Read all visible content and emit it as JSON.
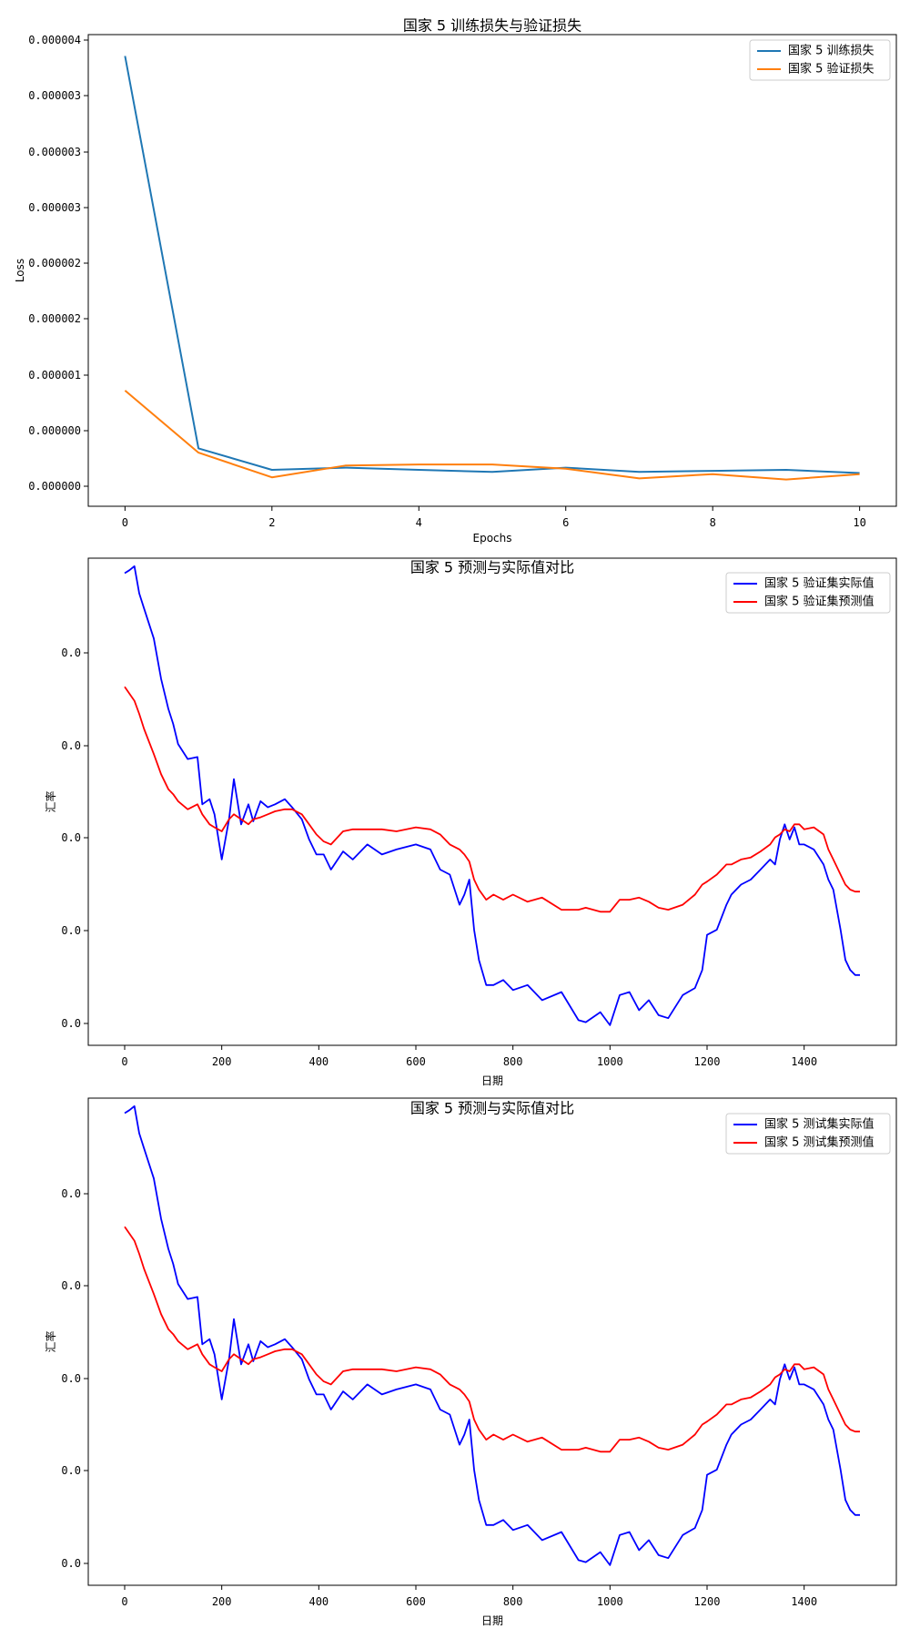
{
  "chart_data": [
    {
      "type": "line",
      "title": "国家 5 训练损失与验证损失",
      "xlabel": "Epochs",
      "ylabel": "Loss",
      "x_ticks": [
        "0",
        "2",
        "4",
        "6",
        "8",
        "10"
      ],
      "y_ticks": [
        "0.000000",
        "0.000000",
        "0.000001",
        "0.000002",
        "0.000002",
        "0.000003",
        "0.000003",
        "0.000003",
        "0.000004"
      ],
      "xlim": [
        -0.5,
        10.5
      ],
      "ylim": [
        -2e-07,
        4.2e-06
      ],
      "x": [
        0,
        1,
        2,
        3,
        4,
        5,
        6,
        7,
        8,
        9,
        10
      ],
      "series": [
        {
          "name": "国家 5 训练损失",
          "color": "#1f77b4",
          "values": [
            4e-06,
            3.4e-07,
            1.4e-07,
            1.6e-07,
            1.4e-07,
            1.2e-07,
            1.6e-07,
            1.2e-07,
            1.3e-07,
            1.4e-07,
            1.1e-07
          ]
        },
        {
          "name": "国家 5 验证损失",
          "color": "#ff7f0e",
          "values": [
            8.8e-07,
            3e-07,
            7e-08,
            1.8e-07,
            1.9e-07,
            1.9e-07,
            1.5e-07,
            6e-08,
            1e-07,
            5e-08,
            1e-07
          ]
        }
      ],
      "grid": false,
      "legend": "top-right"
    },
    {
      "type": "line",
      "title": "国家 5 预测与实际值对比",
      "xlabel": "日期",
      "ylabel": "汇率",
      "x_ticks": [
        "0",
        "200",
        "400",
        "600",
        "800",
        "1000",
        "1200",
        "1400"
      ],
      "y_ticks": [
        "0.0",
        "0.0",
        "0.0",
        "0.0",
        "0.0"
      ],
      "xlim": [
        -75,
        1590
      ],
      "ylim": [
        -0.15,
        4.7
      ],
      "x": [
        0,
        10,
        20,
        30,
        40,
        60,
        75,
        90,
        100,
        110,
        130,
        150,
        160,
        175,
        185,
        200,
        215,
        225,
        240,
        255,
        265,
        280,
        295,
        310,
        330,
        345,
        365,
        380,
        395,
        410,
        425,
        450,
        470,
        500,
        530,
        560,
        600,
        630,
        650,
        670,
        690,
        700,
        710,
        720,
        730,
        745,
        760,
        780,
        800,
        830,
        860,
        900,
        935,
        950,
        980,
        1000,
        1020,
        1040,
        1060,
        1080,
        1100,
        1120,
        1150,
        1175,
        1190,
        1200,
        1220,
        1240,
        1250,
        1270,
        1290,
        1310,
        1330,
        1340,
        1350,
        1360,
        1370,
        1380,
        1390,
        1400,
        1420,
        1440,
        1450,
        1460,
        1475,
        1485,
        1495,
        1505,
        1515
      ],
      "series": [
        {
          "name": "国家 5 验证集实际值",
          "color": "#0000ff",
          "values": [
            4.55,
            4.58,
            4.62,
            4.35,
            4.2,
            3.9,
            3.5,
            3.2,
            3.05,
            2.85,
            2.7,
            2.72,
            2.25,
            2.3,
            2.15,
            1.7,
            2.1,
            2.5,
            2.05,
            2.25,
            2.08,
            2.28,
            2.22,
            2.25,
            2.3,
            2.22,
            2.1,
            1.9,
            1.75,
            1.75,
            1.6,
            1.78,
            1.7,
            1.85,
            1.75,
            1.8,
            1.85,
            1.8,
            1.6,
            1.55,
            1.25,
            1.35,
            1.5,
            1.0,
            0.7,
            0.45,
            0.45,
            0.5,
            0.4,
            0.45,
            0.3,
            0.38,
            0.1,
            0.08,
            0.18,
            0.05,
            0.35,
            0.38,
            0.2,
            0.3,
            0.15,
            0.12,
            0.35,
            0.42,
            0.6,
            0.95,
            1.0,
            1.25,
            1.35,
            1.45,
            1.5,
            1.6,
            1.7,
            1.65,
            1.9,
            2.05,
            1.9,
            2.02,
            1.85,
            1.85,
            1.8,
            1.65,
            1.5,
            1.4,
            1.0,
            0.7,
            0.6,
            0.55,
            0.55
          ]
        },
        {
          "name": "国家 5 验证集预测值",
          "color": "#ff0000",
          "values": [
            3.42,
            3.35,
            3.28,
            3.15,
            3.0,
            2.75,
            2.55,
            2.4,
            2.35,
            2.28,
            2.2,
            2.25,
            2.15,
            2.05,
            2.02,
            1.98,
            2.1,
            2.15,
            2.1,
            2.05,
            2.1,
            2.12,
            2.15,
            2.18,
            2.2,
            2.2,
            2.15,
            2.05,
            1.95,
            1.88,
            1.85,
            1.98,
            2.0,
            2.0,
            2.0,
            1.98,
            2.02,
            2.0,
            1.95,
            1.85,
            1.8,
            1.75,
            1.68,
            1.5,
            1.4,
            1.3,
            1.35,
            1.3,
            1.35,
            1.28,
            1.32,
            1.2,
            1.2,
            1.22,
            1.18,
            1.18,
            1.3,
            1.3,
            1.32,
            1.28,
            1.22,
            1.2,
            1.25,
            1.35,
            1.45,
            1.48,
            1.55,
            1.65,
            1.65,
            1.7,
            1.72,
            1.78,
            1.85,
            1.92,
            1.95,
            2.0,
            1.98,
            2.05,
            2.05,
            2.0,
            2.02,
            1.95,
            1.8,
            1.7,
            1.55,
            1.45,
            1.4,
            1.38,
            1.38
          ]
        }
      ],
      "grid": false,
      "legend": "top-right"
    },
    {
      "type": "line",
      "title": "国家 5 预测与实际值对比",
      "xlabel": "日期",
      "ylabel": "汇率",
      "x_ticks": [
        "0",
        "200",
        "400",
        "600",
        "800",
        "1000",
        "1200",
        "1400"
      ],
      "y_ticks": [
        "0.0",
        "0.0",
        "0.0",
        "0.0",
        "0.0"
      ],
      "xlim": [
        -75,
        1590
      ],
      "ylim": [
        -0.15,
        4.7
      ],
      "x": [
        0,
        10,
        20,
        30,
        40,
        60,
        75,
        90,
        100,
        110,
        130,
        150,
        160,
        175,
        185,
        200,
        215,
        225,
        240,
        255,
        265,
        280,
        295,
        310,
        330,
        345,
        365,
        380,
        395,
        410,
        425,
        450,
        470,
        500,
        530,
        560,
        600,
        630,
        650,
        670,
        690,
        700,
        710,
        720,
        730,
        745,
        760,
        780,
        800,
        830,
        860,
        900,
        935,
        950,
        980,
        1000,
        1020,
        1040,
        1060,
        1080,
        1100,
        1120,
        1150,
        1175,
        1190,
        1200,
        1220,
        1240,
        1250,
        1270,
        1290,
        1310,
        1330,
        1340,
        1350,
        1360,
        1370,
        1380,
        1390,
        1400,
        1420,
        1440,
        1450,
        1460,
        1475,
        1485,
        1495,
        1505,
        1515
      ],
      "series": [
        {
          "name": "国家 5 测试集实际值",
          "color": "#0000ff",
          "values": [
            4.55,
            4.58,
            4.62,
            4.35,
            4.2,
            3.9,
            3.5,
            3.2,
            3.05,
            2.85,
            2.7,
            2.72,
            2.25,
            2.3,
            2.15,
            1.7,
            2.1,
            2.5,
            2.05,
            2.25,
            2.08,
            2.28,
            2.22,
            2.25,
            2.3,
            2.22,
            2.1,
            1.9,
            1.75,
            1.75,
            1.6,
            1.78,
            1.7,
            1.85,
            1.75,
            1.8,
            1.85,
            1.8,
            1.6,
            1.55,
            1.25,
            1.35,
            1.5,
            1.0,
            0.7,
            0.45,
            0.45,
            0.5,
            0.4,
            0.45,
            0.3,
            0.38,
            0.1,
            0.08,
            0.18,
            0.05,
            0.35,
            0.38,
            0.2,
            0.3,
            0.15,
            0.12,
            0.35,
            0.42,
            0.6,
            0.95,
            1.0,
            1.25,
            1.35,
            1.45,
            1.5,
            1.6,
            1.7,
            1.65,
            1.9,
            2.05,
            1.9,
            2.02,
            1.85,
            1.85,
            1.8,
            1.65,
            1.5,
            1.4,
            1.0,
            0.7,
            0.6,
            0.55,
            0.55
          ]
        },
        {
          "name": "国家 5 测试集预测值",
          "color": "#ff0000",
          "values": [
            3.42,
            3.35,
            3.28,
            3.15,
            3.0,
            2.75,
            2.55,
            2.4,
            2.35,
            2.28,
            2.2,
            2.25,
            2.15,
            2.05,
            2.02,
            1.98,
            2.1,
            2.15,
            2.1,
            2.05,
            2.1,
            2.12,
            2.15,
            2.18,
            2.2,
            2.2,
            2.15,
            2.05,
            1.95,
            1.88,
            1.85,
            1.98,
            2.0,
            2.0,
            2.0,
            1.98,
            2.02,
            2.0,
            1.95,
            1.85,
            1.8,
            1.75,
            1.68,
            1.5,
            1.4,
            1.3,
            1.35,
            1.3,
            1.35,
            1.28,
            1.32,
            1.2,
            1.2,
            1.22,
            1.18,
            1.18,
            1.3,
            1.3,
            1.32,
            1.28,
            1.22,
            1.2,
            1.25,
            1.35,
            1.45,
            1.48,
            1.55,
            1.65,
            1.65,
            1.7,
            1.72,
            1.78,
            1.85,
            1.92,
            1.95,
            2.0,
            1.98,
            2.05,
            2.05,
            2.0,
            2.02,
            1.95,
            1.8,
            1.7,
            1.55,
            1.45,
            1.4,
            1.38,
            1.38
          ]
        }
      ],
      "grid": false,
      "legend": "top-right"
    }
  ]
}
